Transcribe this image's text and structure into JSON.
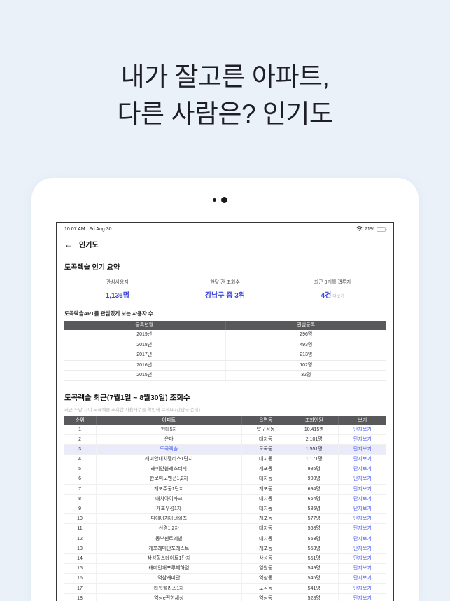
{
  "page": {
    "headline_line1": "내가 잘고른 아파트,",
    "headline_line2": "다른 사람은? 인기도"
  },
  "icons": {
    "back": "←",
    "wifi": "wifi-icon",
    "battery": "battery-icon",
    "camera_dots": "camera-dots"
  },
  "statusbar": {
    "time": "10:07 AM",
    "date": "Fri Aug 30",
    "battery_percent": "71%",
    "battery_level": 71
  },
  "nav": {
    "title": "인기도"
  },
  "summary": {
    "title": "도곡렉슬 인기 요약",
    "stats": [
      {
        "label": "관심사용자",
        "value": "1,136명",
        "extra": ""
      },
      {
        "label": "한달 간 조회수",
        "value": "강남구 중 3위",
        "extra": ""
      },
      {
        "label": "최근 3개월 갭투자",
        "value": "4건",
        "extra": "더보기"
      }
    ]
  },
  "interest_table": {
    "title": "도곡렉슬APT를 관심있게 보는 사용자 수",
    "headers": [
      "등록년월",
      "관심등록"
    ],
    "rows": [
      [
        "2019년",
        "296명"
      ],
      [
        "2018년",
        "493명"
      ],
      [
        "2017년",
        "213명"
      ],
      [
        "2016년",
        "102명"
      ],
      [
        "2015년",
        "32명"
      ]
    ]
  },
  "views_table": {
    "title": "도곡렉슬 최근(7월1일 ~ 8월30일) 조회수",
    "subtitle": "최근 두달 사이 도곡렉슬 조회한 사용자수를 확인해 보세요.(강남구 순위)",
    "headers": [
      "순위",
      "아파트",
      "읍면동",
      "조회인원",
      "보기"
    ],
    "link_label": "단지보기",
    "highlight_rank": "3",
    "rows": [
      {
        "rank": "1",
        "apt": "현대5차",
        "dong": "압구정동",
        "count": "10,415명"
      },
      {
        "rank": "2",
        "apt": "은마",
        "dong": "대치동",
        "count": "2,101명"
      },
      {
        "rank": "3",
        "apt": "도곡렉슬",
        "dong": "도곡동",
        "count": "1,551명"
      },
      {
        "rank": "4",
        "apt": "래미안대치팰리스1단지",
        "dong": "대치동",
        "count": "1,171명"
      },
      {
        "rank": "5",
        "apt": "래미안블레스티지",
        "dong": "개포동",
        "count": "986명"
      },
      {
        "rank": "6",
        "apt": "한보미도맨션1,2차",
        "dong": "대치동",
        "count": "908명"
      },
      {
        "rank": "7",
        "apt": "개포주공1단지",
        "dong": "개포동",
        "count": "694명"
      },
      {
        "rank": "8",
        "apt": "대치아이파크",
        "dong": "대치동",
        "count": "664명"
      },
      {
        "rank": "9",
        "apt": "개포우성1차",
        "dong": "대치동",
        "count": "585명"
      },
      {
        "rank": "10",
        "apt": "디에이치아너힐즈",
        "dong": "개포동",
        "count": "577명"
      },
      {
        "rank": "11",
        "apt": "선경1,2차",
        "dong": "대치동",
        "count": "568명"
      },
      {
        "rank": "12",
        "apt": "동부센트레빌",
        "dong": "대치동",
        "count": "553명"
      },
      {
        "rank": "13",
        "apt": "개포래미안포레스트",
        "dong": "개포동",
        "count": "553명"
      },
      {
        "rank": "14",
        "apt": "삼성힐스테이트1단지",
        "dong": "삼성동",
        "count": "551명"
      },
      {
        "rank": "15",
        "apt": "래미안개포루체하임",
        "dong": "일원동",
        "count": "549명"
      },
      {
        "rank": "16",
        "apt": "역삼래미안",
        "dong": "역삼동",
        "count": "546명"
      },
      {
        "rank": "17",
        "apt": "타워팰리스1차",
        "dong": "도곡동",
        "count": "541명"
      },
      {
        "rank": "18",
        "apt": "역삼e편한세상",
        "dong": "역삼동",
        "count": "528명"
      }
    ]
  },
  "colors": {
    "page_background": "#eaf1f9",
    "headline_text": "#1d1f24",
    "accent_blue": "#3947d8",
    "link_blue": "#4a5af0",
    "table_header_bg": "#59595b",
    "highlight_row_bg": "#e9ebfb",
    "battery_green": "#34c759"
  }
}
